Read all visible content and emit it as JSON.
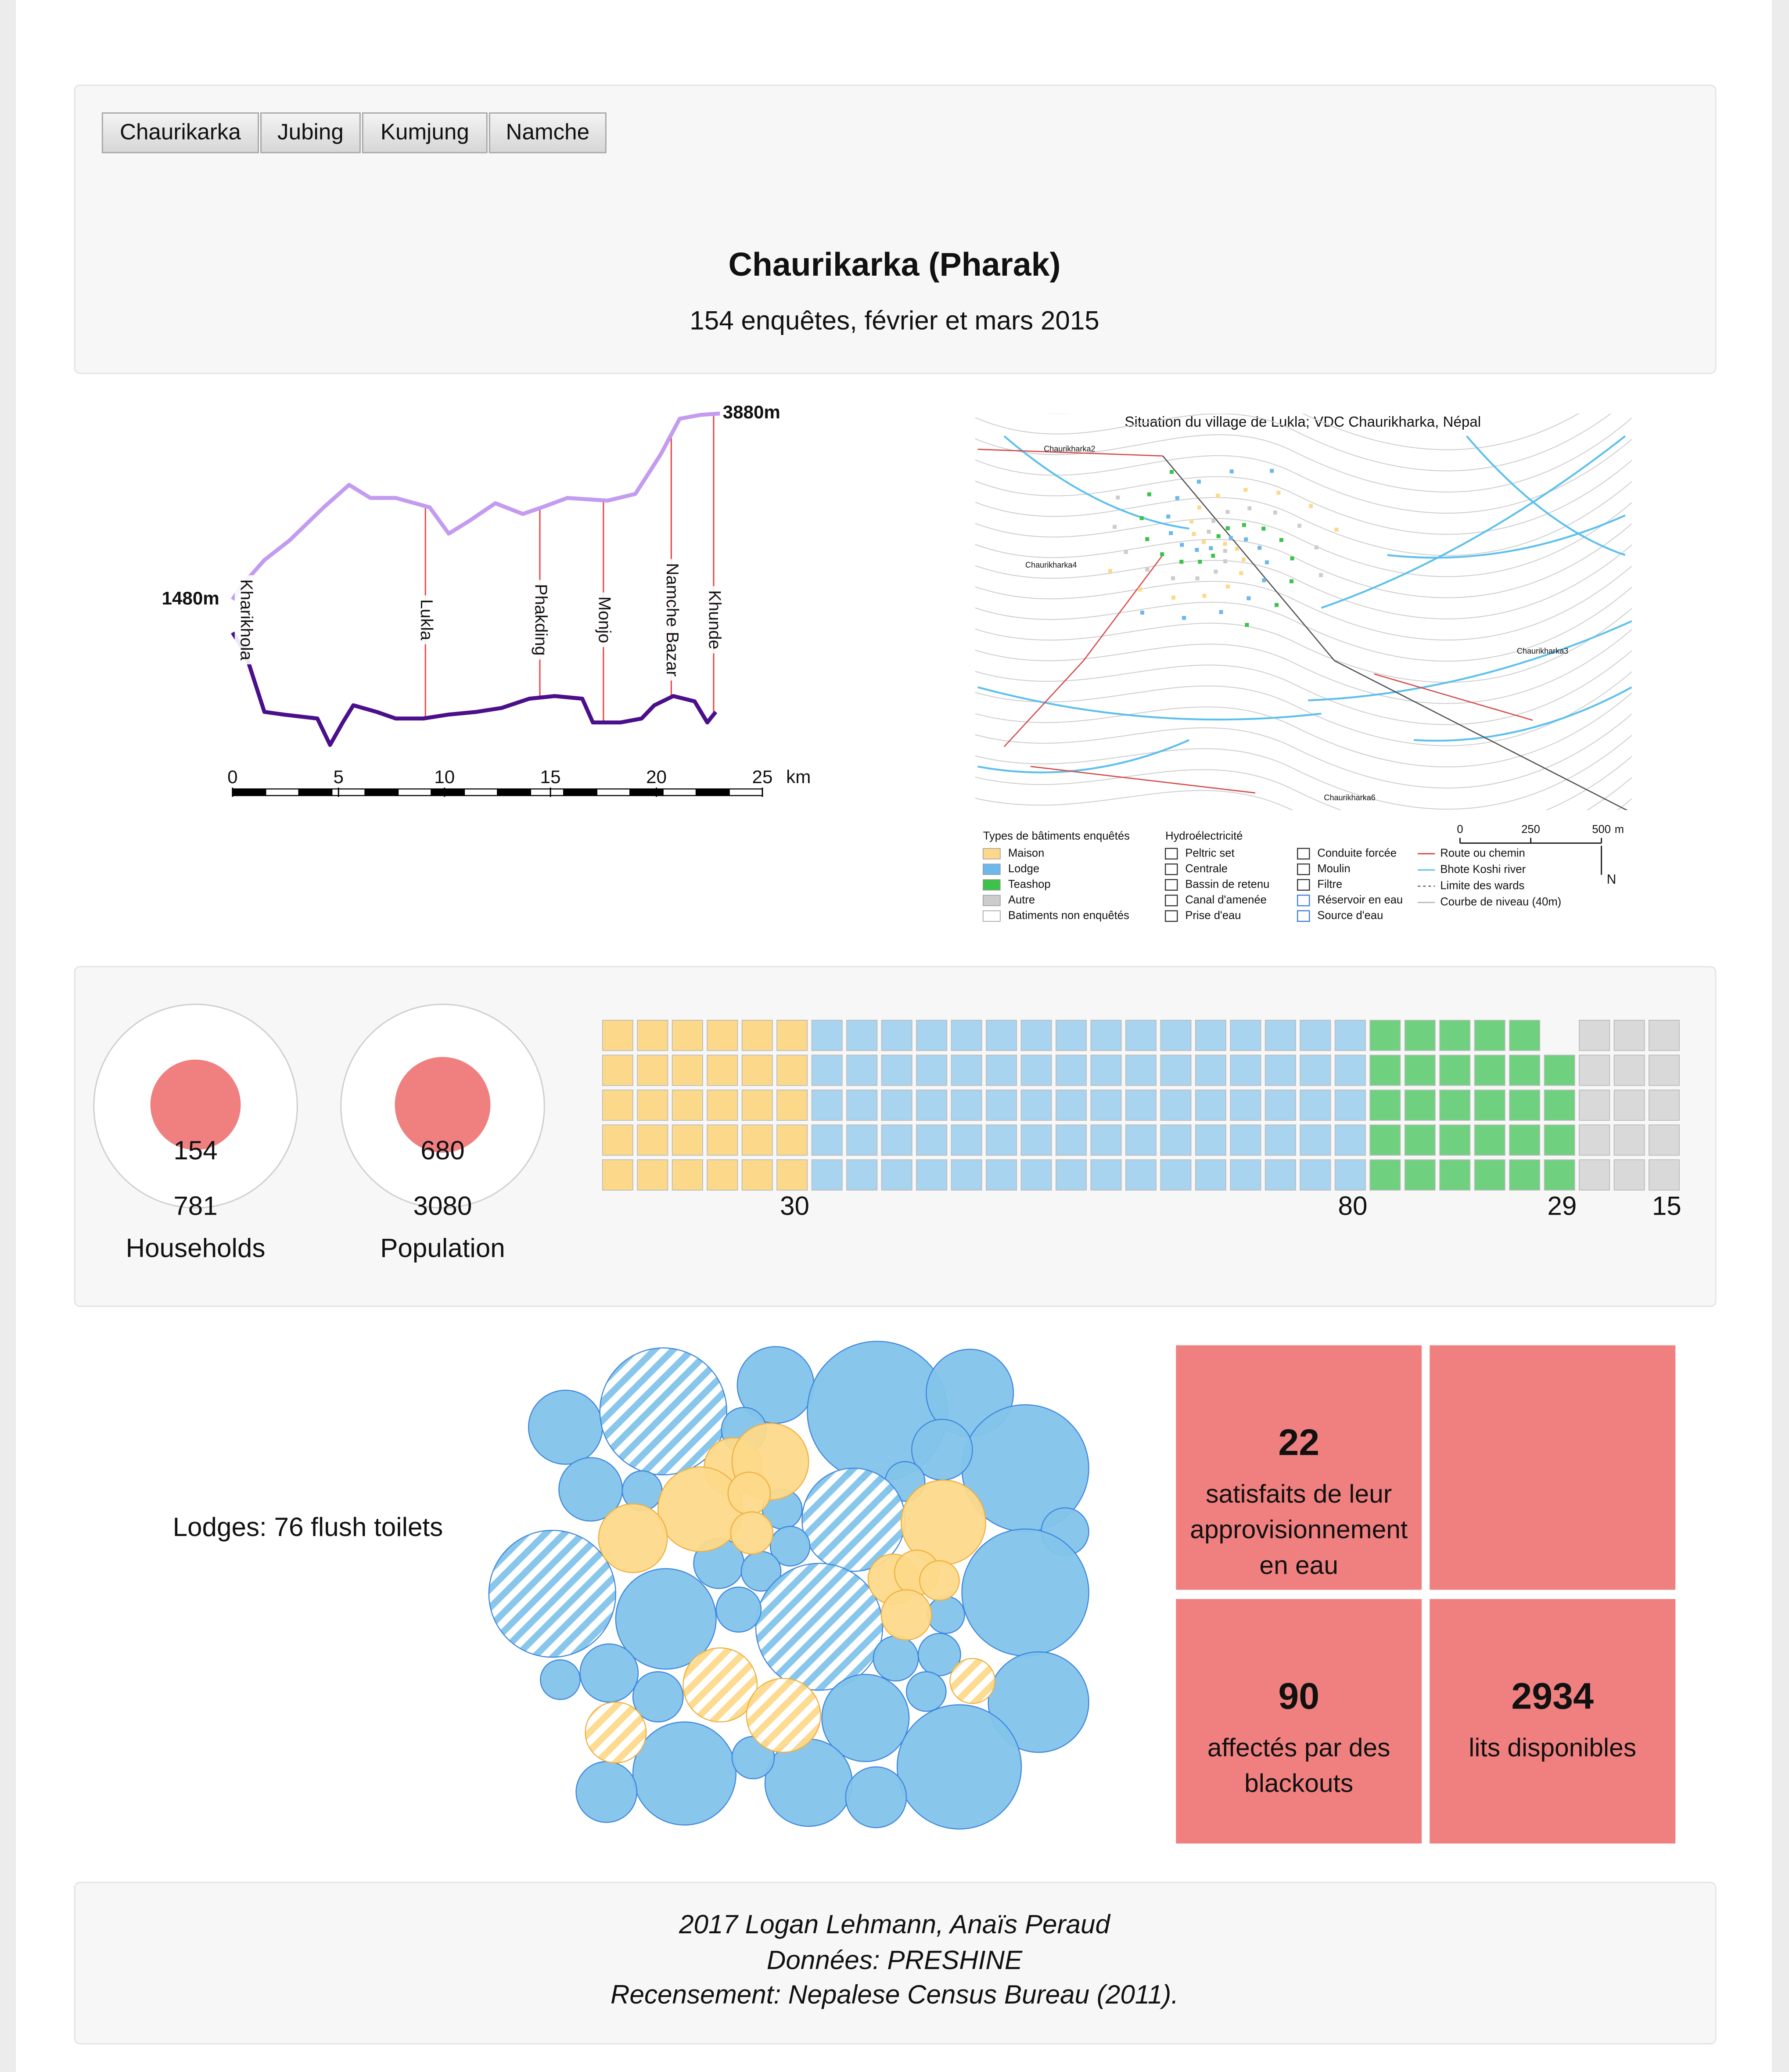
{
  "tabs": [
    "Chaurikarka",
    "Jubing",
    "Kumjung",
    "Namche"
  ],
  "header": {
    "title": "Chaurikarka (Pharak)",
    "subtitle": "154 enquêtes, février et mars 2015"
  },
  "profile": {
    "type": "line",
    "xlim": [
      0,
      25
    ],
    "xticks": [
      0,
      5,
      10,
      15,
      20,
      25
    ],
    "x_unit": "km",
    "ylim": [
      -500,
      4100
    ],
    "elevation_labels": [
      {
        "value": 1480,
        "label": "1480m"
      },
      {
        "value": 3880,
        "label": "3880m"
      }
    ],
    "places": {
      "names": [
        "Kharikhola",
        "Lukla",
        "Phakding",
        "Monjo",
        "Namche Bazar",
        "Khunde"
      ],
      "km": [
        0.6,
        9.1,
        14.5,
        17.5,
        20.7,
        22.7
      ]
    },
    "series": [
      {
        "color": "#c39bf0",
        "x": [
          0,
          0.4,
          1.5,
          2.7,
          4.3,
          5.5,
          6.5,
          7.7,
          9.3,
          10.2,
          11.2,
          12.4,
          13.7,
          14.6,
          15.8,
          17.7,
          19.0,
          19.6,
          20.2,
          21.1,
          22.1,
          23.0
        ],
        "values": [
          1480,
          1650,
          1991,
          2246,
          2671,
          2961,
          2791,
          2791,
          2671,
          2331,
          2501,
          2723,
          2586,
          2671,
          2791,
          2757,
          2842,
          3097,
          3352,
          3812,
          3863,
          3880
        ]
      },
      {
        "color": "#4b0f8c",
        "x": [
          0,
          0.6,
          1.5,
          2.4,
          4.0,
          4.6,
          5.2,
          5.7,
          6.8,
          7.7,
          9.0,
          10.2,
          11.5,
          12.7,
          14.0,
          15.2,
          16.5,
          17.0,
          18.3,
          19.3,
          19.9,
          20.8,
          21.8,
          22.4,
          22.8
        ],
        "values": [
          1055,
          799,
          33,
          -1,
          -52,
          -392,
          -103,
          118,
          33,
          -52,
          -52,
          -1,
          33,
          84,
          203,
          237,
          203,
          -103,
          -103,
          -52,
          118,
          237,
          169,
          -103,
          33
        ]
      }
    ]
  },
  "map": {
    "title": "Situation du village de Lukla; VDC Chaurikharka, Népal",
    "wards": [
      "Chaurikharka2",
      "Chaurikharka4",
      "Chaurikharka3",
      "Chaurikharka6"
    ],
    "legend_buildings_title": "Types de bâtiments enquêtés",
    "legend_buildings": [
      "Maison",
      "Lodge",
      "Teashop",
      "Autre",
      "Batiments non enquêtés"
    ],
    "legend_buildings_colors": [
      "#fcd98a",
      "#6cb8ec",
      "#3cc24a",
      "#cccccc",
      "#ffffff"
    ],
    "legend_hydro_title": "Hydroélectricité",
    "legend_hydro": [
      "Peltric set",
      "Centrale",
      "Bassin de retenu",
      "Canal d'amenée",
      "Prise d'eau",
      "Conduite forcée",
      "Moulin",
      "Filtre",
      "Réservoir en eau",
      "Source d'eau"
    ],
    "legend_other": [
      "Route ou chemin",
      "Bhote Koshi river",
      "Limite des wards",
      "Courbe de niveau (40m)"
    ],
    "scale": [
      0,
      250,
      500
    ],
    "scale_unit": "m",
    "north": "N"
  },
  "circles": {
    "color": "#f08080",
    "items": [
      {
        "value": 154,
        "total": 781,
        "label": "Households"
      },
      {
        "value": 680,
        "total": 3080,
        "label": "Population"
      }
    ]
  },
  "waffle": {
    "values": [
      30,
      80,
      29,
      15
    ],
    "colors": [
      "#fcd98a",
      "#a8d4f0",
      "#6fd17f",
      "#d9d9d9"
    ]
  },
  "bubbles": {
    "label": "Lodges: 76 flush toilets",
    "series": [
      {
        "color": "#82c4ea",
        "values": [
          28,
          48,
          29,
          53,
          33,
          48,
          24,
          15,
          17,
          23,
          15,
          15,
          39,
          18,
          15,
          19,
          15,
          48,
          38,
          48,
          14,
          48,
          17,
          22,
          15,
          19,
          17,
          16,
          15,
          38,
          33,
          39,
          33,
          16,
          47,
          23,
          23
        ],
        "hatched": [
          false,
          true,
          false,
          false,
          false,
          false,
          false,
          false,
          false,
          false,
          false,
          false,
          true,
          false,
          false,
          false,
          false,
          true,
          false,
          true,
          false,
          false,
          false,
          false,
          false,
          false,
          false,
          false,
          false,
          false,
          false,
          false,
          false,
          false,
          false,
          false,
          false
        ]
      },
      {
        "color": "#fdd98a",
        "values": [
          22,
          29,
          32,
          16,
          32,
          26,
          16,
          19,
          17,
          15,
          19,
          28,
          17,
          28,
          23
        ],
        "hatched": [
          false,
          false,
          false,
          false,
          false,
          false,
          false,
          false,
          false,
          false,
          false,
          true,
          true,
          true,
          true
        ]
      }
    ]
  },
  "tiles": [
    {
      "value": 22,
      "label": "satisfaits de leur approvisionnement en eau"
    },
    {
      "value": 90,
      "label": "affectés par des blackouts"
    },
    {
      "value": 2934,
      "label": "lits disponibles"
    }
  ],
  "footer": [
    "2017 Logan Lehmann, Anaïs Peraud",
    "Données: PRESHINE",
    "Recensement: Nepalese Census Bureau (2011)."
  ]
}
